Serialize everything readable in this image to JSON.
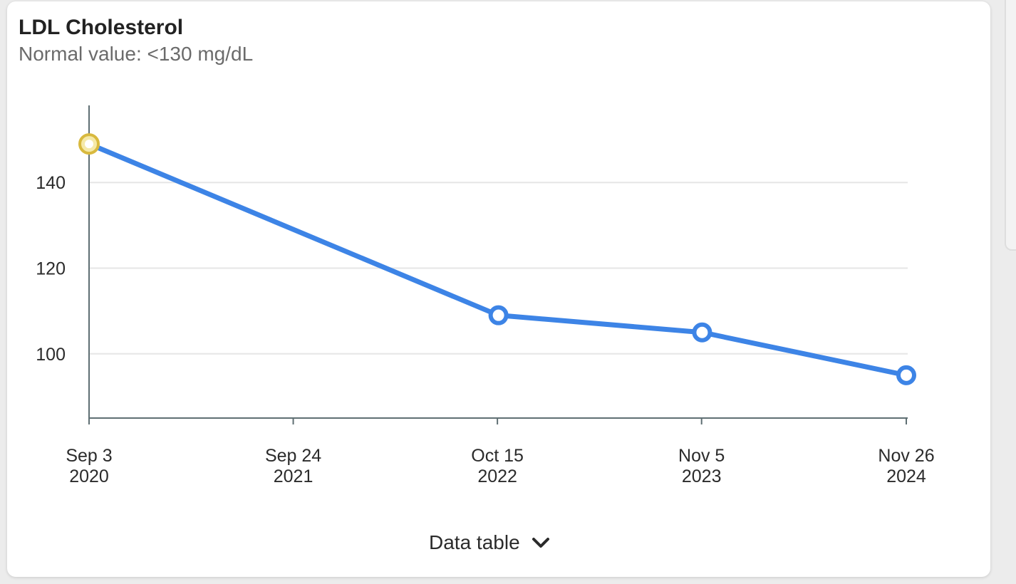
{
  "card": {
    "title": "LDL Cholesterol",
    "subtitle": "Normal value: <130 mg/dL"
  },
  "toggle": {
    "label": "Data table",
    "icon": "chevron-down-icon"
  },
  "colors": {
    "line": "#3d84e6",
    "point_fill": "#ffffff",
    "out_of_range_ring": "#d8b93e",
    "out_of_range_fill": "#f5e9a8",
    "grid": "#e6e6e6",
    "axis": "#5f6f73"
  },
  "chart_data": {
    "type": "line",
    "title": "LDL Cholesterol",
    "subtitle": "Normal value: <130 mg/dL",
    "x_ticks": [
      {
        "line1": "Sep 3",
        "line2": "2020",
        "date": "2020-09-03"
      },
      {
        "line1": "Sep 24",
        "line2": "2021",
        "date": "2021-09-24"
      },
      {
        "line1": "Oct 15",
        "line2": "2022",
        "date": "2022-10-15"
      },
      {
        "line1": "Nov 5",
        "line2": "2023",
        "date": "2023-11-05"
      },
      {
        "line1": "Nov 26",
        "line2": "2024",
        "date": "2024-11-26"
      }
    ],
    "y_ticks": [
      100,
      120,
      140
    ],
    "ylim": [
      85,
      158
    ],
    "grid": "horizontal",
    "series": [
      {
        "points": [
          {
            "date": "2020-09-03",
            "value": 149,
            "out_of_range": true
          },
          {
            "date": "2022-10-17",
            "value": 109,
            "out_of_range": false
          },
          {
            "date": "2023-11-06",
            "value": 105,
            "out_of_range": false
          },
          {
            "date": "2024-11-26",
            "value": 95,
            "out_of_range": false
          }
        ]
      }
    ]
  }
}
